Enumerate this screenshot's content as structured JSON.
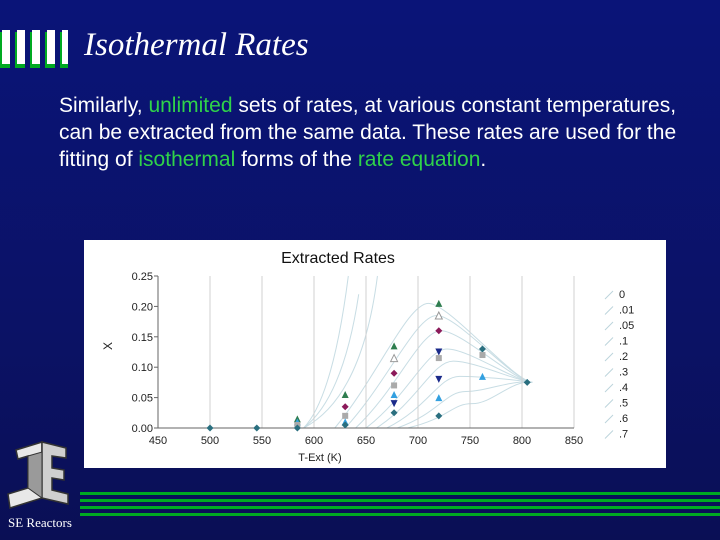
{
  "slide": {
    "title": "Isothermal Rates",
    "body": {
      "s1": "Similarly, ",
      "s2": "unlimited",
      "s3": " sets of rates, at various constant temperatures, can be extracted from the same data. These rates are used for the fitting of ",
      "s4": "isothermal",
      "s5": " forms of the ",
      "s6": "rate equation",
      "s7": "."
    },
    "footer": "SE Reactors",
    "logo_text": "SE",
    "colors": {
      "background": "#0a1478",
      "highlight": "#2fd24a",
      "text": "#ffffff"
    }
  },
  "chart_data": {
    "type": "scatter",
    "title": "Extracted Rates",
    "xlabel": "T-Ext (K)",
    "ylabel": "X",
    "xlim": [
      450,
      850
    ],
    "ylim": [
      0,
      0.25
    ],
    "xticks": [
      450,
      500,
      550,
      600,
      650,
      700,
      750,
      800,
      850
    ],
    "yticks": [
      "0.00",
      "0.05",
      "0.10",
      "0.15",
      "0.20",
      "0.25"
    ],
    "grid": "vertical",
    "legend": [
      "0",
      ".01",
      ".05",
      ".1",
      ".2",
      ".3",
      ".4",
      ".5",
      ".6",
      ".7"
    ],
    "legend_position": "right",
    "points": [
      {
        "x": 500,
        "y": 0.0,
        "color": "#2a6f7f",
        "shape": "diamond"
      },
      {
        "x": 545,
        "y": 0.0,
        "color": "#2a6f7f",
        "shape": "diamond"
      },
      {
        "x": 584,
        "y": 0.015,
        "color": "#2e7d4f",
        "shape": "triangle"
      },
      {
        "x": 584,
        "y": 0.01,
        "color": "#33a0e0",
        "shape": "triangle"
      },
      {
        "x": 584,
        "y": 0.005,
        "color": "#aaaaaa",
        "shape": "square"
      },
      {
        "x": 584,
        "y": 0.0,
        "color": "#2a6f7f",
        "shape": "diamond"
      },
      {
        "x": 630,
        "y": 0.055,
        "color": "#2e7d4f",
        "shape": "triangle"
      },
      {
        "x": 630,
        "y": 0.035,
        "color": "#8b1a5a",
        "shape": "diamond"
      },
      {
        "x": 630,
        "y": 0.02,
        "color": "#aaaaaa",
        "shape": "square"
      },
      {
        "x": 630,
        "y": 0.01,
        "color": "#33a0e0",
        "shape": "triangle"
      },
      {
        "x": 630,
        "y": 0.005,
        "color": "#2a6f7f",
        "shape": "diamond"
      },
      {
        "x": 677,
        "y": 0.135,
        "color": "#2e7d4f",
        "shape": "triangle"
      },
      {
        "x": 677,
        "y": 0.115,
        "color": "#cccccc",
        "shape": "triangle-open"
      },
      {
        "x": 677,
        "y": 0.09,
        "color": "#8b1a5a",
        "shape": "diamond"
      },
      {
        "x": 677,
        "y": 0.07,
        "color": "#aaaaaa",
        "shape": "square"
      },
      {
        "x": 677,
        "y": 0.055,
        "color": "#33a0e0",
        "shape": "triangle"
      },
      {
        "x": 677,
        "y": 0.04,
        "color": "#1a2a8a",
        "shape": "triangle-down"
      },
      {
        "x": 677,
        "y": 0.025,
        "color": "#2a6f7f",
        "shape": "diamond"
      },
      {
        "x": 720,
        "y": 0.205,
        "color": "#2e7d4f",
        "shape": "triangle"
      },
      {
        "x": 720,
        "y": 0.185,
        "color": "#cccccc",
        "shape": "triangle-open"
      },
      {
        "x": 720,
        "y": 0.16,
        "color": "#8b1a5a",
        "shape": "diamond"
      },
      {
        "x": 720,
        "y": 0.125,
        "color": "#1a2a8a",
        "shape": "triangle-down"
      },
      {
        "x": 720,
        "y": 0.115,
        "color": "#aaaaaa",
        "shape": "square"
      },
      {
        "x": 720,
        "y": 0.08,
        "color": "#1a2a8a",
        "shape": "triangle-down"
      },
      {
        "x": 720,
        "y": 0.05,
        "color": "#33a0e0",
        "shape": "triangle"
      },
      {
        "x": 720,
        "y": 0.02,
        "color": "#2a6f7f",
        "shape": "diamond"
      },
      {
        "x": 762,
        "y": 0.13,
        "color": "#2a6f7f",
        "shape": "diamond"
      },
      {
        "x": 762,
        "y": 0.12,
        "color": "#aaaaaa",
        "shape": "square"
      },
      {
        "x": 762,
        "y": 0.085,
        "color": "#33a0e0",
        "shape": "triangle"
      },
      {
        "x": 805,
        "y": 0.075,
        "color": "#2a6f7f",
        "shape": "diamond"
      }
    ]
  }
}
